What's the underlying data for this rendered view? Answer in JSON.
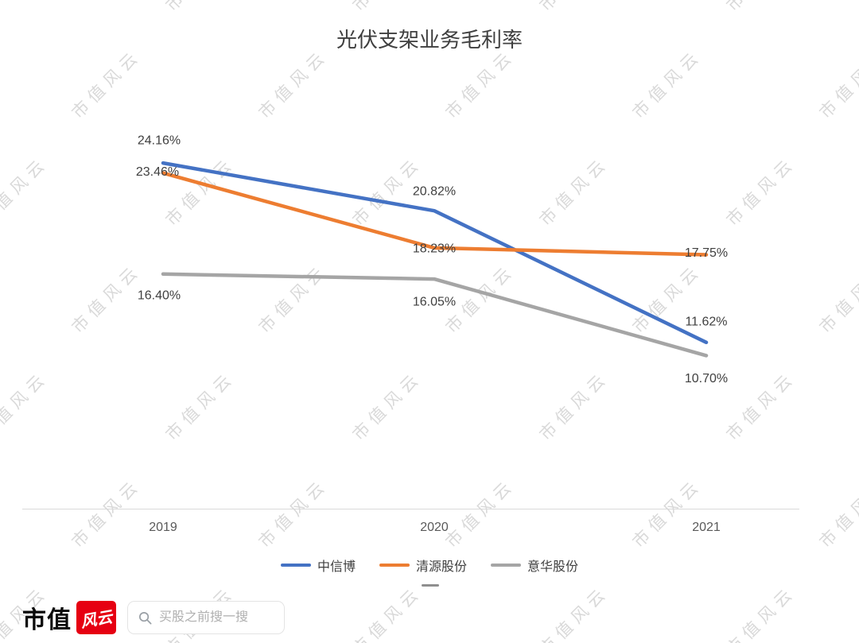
{
  "watermark": {
    "text": "市值风云",
    "color": "#d9d9d9"
  },
  "chart_data": {
    "type": "line",
    "title": "光伏支架业务毛利率",
    "categories": [
      "2019",
      "2020",
      "2021"
    ],
    "series": [
      {
        "name": "中信博",
        "color": "#4472C4",
        "values": [
          24.16,
          20.82,
          11.62
        ],
        "labels": [
          "24.16%",
          "20.82%",
          "11.62%"
        ]
      },
      {
        "name": "清源股份",
        "color": "#ED7D31",
        "values": [
          23.46,
          18.23,
          17.75
        ],
        "labels": [
          "23.46%",
          "18.23%",
          "17.75%"
        ]
      },
      {
        "name": "意华股份",
        "color": "#A5A5A5",
        "values": [
          16.4,
          16.05,
          10.7
        ],
        "labels": [
          "16.40%",
          "16.05%",
          "10.70%"
        ]
      }
    ],
    "ylim": [
      0,
      25
    ],
    "grid": false,
    "legend_position": "bottom",
    "axis_color": "#d9d9d9",
    "tick_color": "#595959",
    "label_color": "#404040"
  },
  "footer": {
    "logo_text": "市值",
    "logo_badge_text": "风云",
    "logo_badge_color": "#e60012",
    "search_placeholder": "买股之前搜一搜"
  }
}
